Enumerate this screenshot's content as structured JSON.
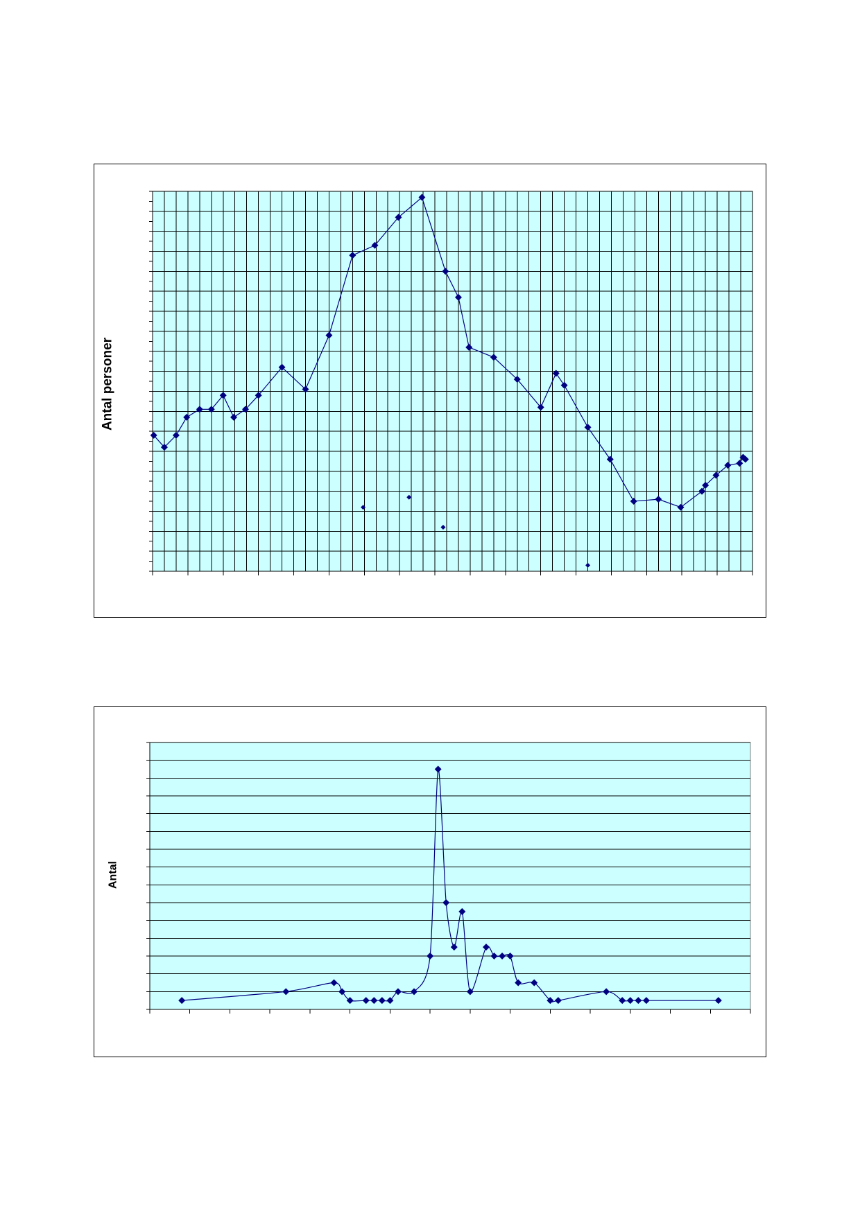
{
  "chart_data": [
    {
      "type": "line",
      "title": "",
      "xlabel": "",
      "ylabel": "Antal personer",
      "xlim": [
        0,
        51
      ],
      "ylim": [
        0,
        19
      ],
      "grid": true,
      "x_grid_step": 1,
      "x_tick_step": 3,
      "y_grid_step": 1,
      "y_tick_step": 0.5,
      "smooth": false,
      "line_color": "#000080",
      "marker": "diamond",
      "plot_background": "#ccffff",
      "plot_border_color": "#000000",
      "series": [
        {
          "x": [
            0.1,
            1.0,
            2.0,
            2.9,
            4.0,
            5.0,
            6.0,
            6.9,
            7.9,
            9.0,
            11.0,
            13.0,
            15.0,
            17.0,
            18.9,
            20.9,
            22.9,
            24.9,
            26.0,
            26.9,
            29.0,
            31.0,
            33.0,
            34.3,
            35.0,
            37.0,
            38.9,
            40.9,
            43.0,
            44.9,
            46.7,
            47.0,
            47.9,
            48.9,
            49.9,
            50.2,
            50.4
          ],
          "y": [
            6.8,
            6.2,
            6.8,
            7.7,
            8.1,
            8.1,
            8.8,
            7.7,
            8.1,
            8.8,
            10.2,
            9.1,
            11.8,
            15.8,
            16.3,
            17.7,
            18.7,
            15.0,
            13.7,
            11.2,
            10.7,
            9.6,
            8.2,
            9.9,
            9.3,
            7.2,
            5.6,
            3.5,
            3.6,
            3.2,
            4.0,
            4.3,
            4.8,
            5.3,
            5.4,
            5.7,
            5.6
          ]
        }
      ],
      "unconnected_points": {
        "x": [
          17.9,
          21.8,
          24.7,
          37.0
        ],
        "y": [
          3.2,
          3.7,
          2.2,
          0.3
        ]
      }
    },
    {
      "type": "line",
      "title": "",
      "xlabel": "",
      "ylabel": "Antal",
      "xlim": [
        0,
        15
      ],
      "ylim": [
        0,
        15
      ],
      "grid": true,
      "x_grid_step": 0,
      "x_tick_step": 1,
      "y_grid_step": 1,
      "y_tick_step": 1,
      "smooth": true,
      "line_color": "#000080",
      "marker": "diamond",
      "plot_background": "#ccffff",
      "plot_border_color": "#808080",
      "series": [
        {
          "x": [
            0.8,
            3.4,
            4.6,
            4.8,
            5.0,
            5.4,
            5.6,
            5.8,
            6.0,
            6.2,
            6.6,
            7.0,
            7.2,
            7.4,
            7.6,
            7.8,
            8.0,
            8.4,
            8.6,
            8.8,
            9.0,
            9.2,
            9.6,
            10.0,
            10.2,
            11.4,
            11.8,
            12.0,
            12.2,
            12.4,
            14.2
          ],
          "y": [
            0.5,
            1.0,
            1.5,
            1.0,
            0.5,
            0.5,
            0.5,
            0.5,
            0.5,
            1.0,
            1.0,
            3.0,
            13.5,
            6.0,
            3.5,
            5.5,
            1.0,
            3.5,
            3.0,
            3.0,
            3.0,
            1.5,
            1.5,
            0.5,
            0.5,
            1.0,
            0.5,
            0.5,
            0.5,
            0.5,
            0.5
          ]
        }
      ]
    }
  ]
}
